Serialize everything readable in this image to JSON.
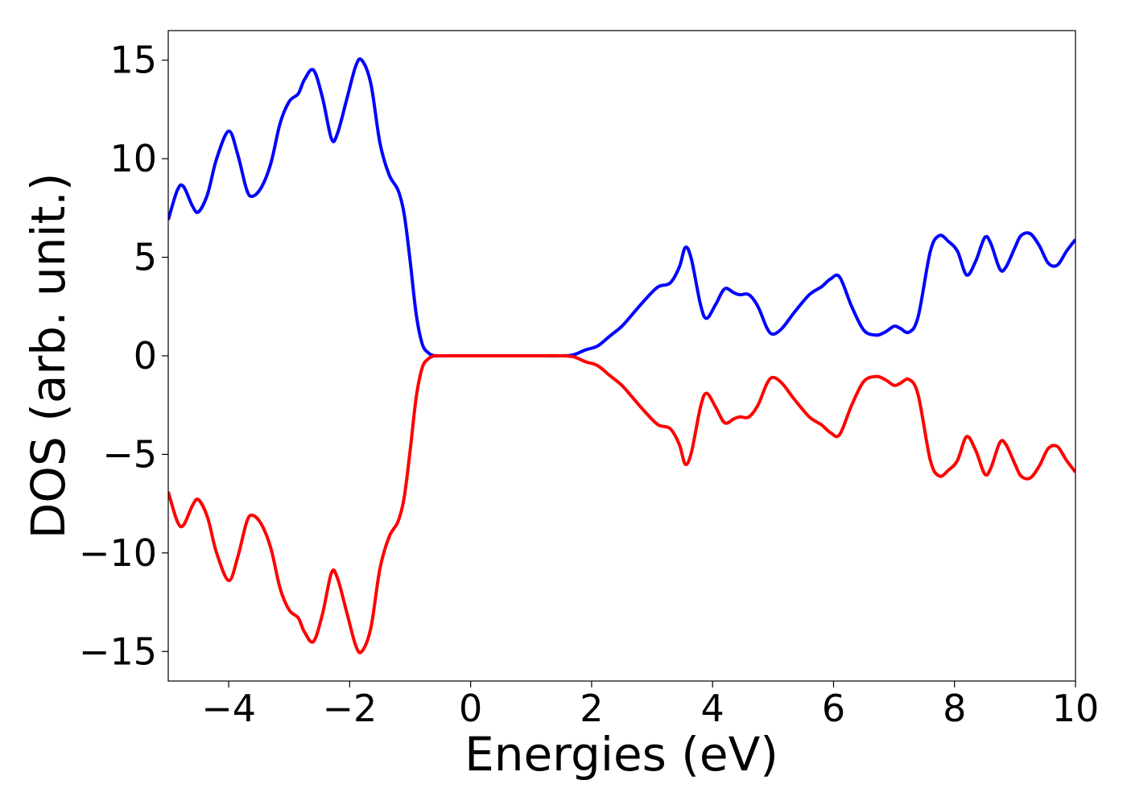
{
  "chart_data": {
    "type": "line",
    "xlabel": "Energies (eV)",
    "ylabel": "DOS (arb. unit.)",
    "xlim": [
      -5,
      10
    ],
    "ylim": [
      -16.5,
      16.5
    ],
    "xticks": [
      -4,
      -2,
      0,
      2,
      4,
      6,
      8,
      10
    ],
    "xtick_labels": [
      "−4",
      "−2",
      "0",
      "2",
      "4",
      "6",
      "8",
      "10"
    ],
    "yticks": [
      15,
      10,
      5,
      0,
      -5,
      -10,
      -15
    ],
    "ytick_labels": [
      "15",
      "10",
      "5",
      "0",
      "−5",
      "−10",
      "−15"
    ],
    "grid": false,
    "legend": "none",
    "series": [
      {
        "color": "#0000ff",
        "x": [
          -5.0,
          -4.85,
          -4.75,
          -4.6,
          -4.5,
          -4.35,
          -4.2,
          -4.0,
          -3.85,
          -3.7,
          -3.6,
          -3.45,
          -3.3,
          -3.15,
          -3.0,
          -2.85,
          -2.75,
          -2.6,
          -2.45,
          -2.3,
          -2.2,
          -2.05,
          -1.9,
          -1.8,
          -1.65,
          -1.5,
          -1.35,
          -1.2,
          -1.1,
          -1.0,
          -0.9,
          -0.8,
          -0.7,
          -0.6,
          -0.5,
          0.0,
          0.5,
          1.0,
          1.5,
          1.7,
          1.9,
          2.1,
          2.3,
          2.5,
          2.7,
          2.9,
          3.1,
          3.3,
          3.45,
          3.55,
          3.65,
          3.8,
          3.9,
          4.05,
          4.2,
          4.35,
          4.45,
          4.6,
          4.75,
          4.9,
          5.0,
          5.15,
          5.35,
          5.6,
          5.8,
          5.95,
          6.1,
          6.3,
          6.5,
          6.7,
          6.85,
          7.0,
          7.1,
          7.25,
          7.4,
          7.6,
          7.75,
          7.9,
          8.05,
          8.2,
          8.35,
          8.5,
          8.6,
          8.75,
          8.85,
          9.0,
          9.1,
          9.25,
          9.4,
          9.55,
          9.7,
          9.85,
          10.0
        ],
        "values": [
          6.9,
          8.4,
          8.6,
          7.6,
          7.3,
          8.2,
          10.0,
          11.4,
          10.2,
          8.4,
          8.1,
          8.6,
          9.8,
          11.8,
          12.9,
          13.3,
          14.0,
          14.5,
          13.1,
          11.0,
          11.3,
          13.0,
          14.7,
          15.0,
          13.8,
          10.8,
          9.2,
          8.4,
          7.2,
          4.8,
          2.1,
          0.6,
          0.15,
          0.0,
          0.0,
          0.0,
          0.0,
          0.0,
          0.0,
          0.05,
          0.3,
          0.5,
          1.0,
          1.5,
          2.2,
          2.9,
          3.5,
          3.7,
          4.5,
          5.5,
          4.9,
          2.6,
          1.9,
          2.6,
          3.4,
          3.2,
          3.1,
          3.1,
          2.5,
          1.4,
          1.1,
          1.4,
          2.2,
          3.1,
          3.5,
          3.9,
          4.0,
          2.5,
          1.3,
          1.05,
          1.2,
          1.5,
          1.4,
          1.2,
          2.0,
          5.3,
          6.1,
          5.8,
          5.3,
          4.1,
          4.8,
          6.0,
          5.7,
          4.4,
          4.5,
          5.5,
          6.1,
          6.2,
          5.6,
          4.7,
          4.6,
          5.3,
          5.9
        ]
      },
      {
        "color": "#ff0000",
        "x": [
          -5.0,
          -4.85,
          -4.75,
          -4.6,
          -4.5,
          -4.35,
          -4.2,
          -4.0,
          -3.85,
          -3.7,
          -3.6,
          -3.45,
          -3.3,
          -3.15,
          -3.0,
          -2.85,
          -2.75,
          -2.6,
          -2.45,
          -2.3,
          -2.2,
          -2.05,
          -1.9,
          -1.8,
          -1.65,
          -1.5,
          -1.35,
          -1.2,
          -1.1,
          -1.0,
          -0.9,
          -0.8,
          -0.7,
          -0.6,
          -0.5,
          0.0,
          0.5,
          1.0,
          1.5,
          1.7,
          1.9,
          2.1,
          2.3,
          2.5,
          2.7,
          2.9,
          3.1,
          3.3,
          3.45,
          3.55,
          3.65,
          3.8,
          3.9,
          4.05,
          4.2,
          4.35,
          4.45,
          4.6,
          4.75,
          4.9,
          5.0,
          5.15,
          5.35,
          5.6,
          5.8,
          5.95,
          6.1,
          6.3,
          6.5,
          6.7,
          6.85,
          7.0,
          7.1,
          7.25,
          7.4,
          7.6,
          7.75,
          7.9,
          8.05,
          8.2,
          8.35,
          8.5,
          8.6,
          8.75,
          8.85,
          9.0,
          9.1,
          9.25,
          9.4,
          9.55,
          9.7,
          9.85,
          10.0
        ],
        "values": [
          -6.9,
          -8.4,
          -8.6,
          -7.6,
          -7.3,
          -8.2,
          -10.0,
          -11.4,
          -10.2,
          -8.4,
          -8.1,
          -8.6,
          -9.8,
          -11.8,
          -12.9,
          -13.3,
          -14.0,
          -14.5,
          -13.1,
          -11.0,
          -11.3,
          -13.0,
          -14.7,
          -15.0,
          -13.8,
          -10.8,
          -9.2,
          -8.4,
          -7.2,
          -4.8,
          -2.1,
          -0.6,
          -0.15,
          0.0,
          0.0,
          0.0,
          0.0,
          0.0,
          0.0,
          -0.05,
          -0.3,
          -0.5,
          -1.0,
          -1.5,
          -2.2,
          -2.9,
          -3.5,
          -3.7,
          -4.5,
          -5.5,
          -4.9,
          -2.6,
          -1.9,
          -2.6,
          -3.4,
          -3.2,
          -3.1,
          -3.1,
          -2.5,
          -1.4,
          -1.1,
          -1.4,
          -2.2,
          -3.1,
          -3.5,
          -3.9,
          -4.0,
          -2.5,
          -1.3,
          -1.05,
          -1.2,
          -1.5,
          -1.4,
          -1.2,
          -2.0,
          -5.3,
          -6.1,
          -5.8,
          -5.3,
          -4.1,
          -4.8,
          -6.0,
          -5.7,
          -4.4,
          -4.5,
          -5.5,
          -6.1,
          -6.2,
          -5.6,
          -4.7,
          -4.6,
          -5.3,
          -5.9
        ]
      }
    ]
  }
}
